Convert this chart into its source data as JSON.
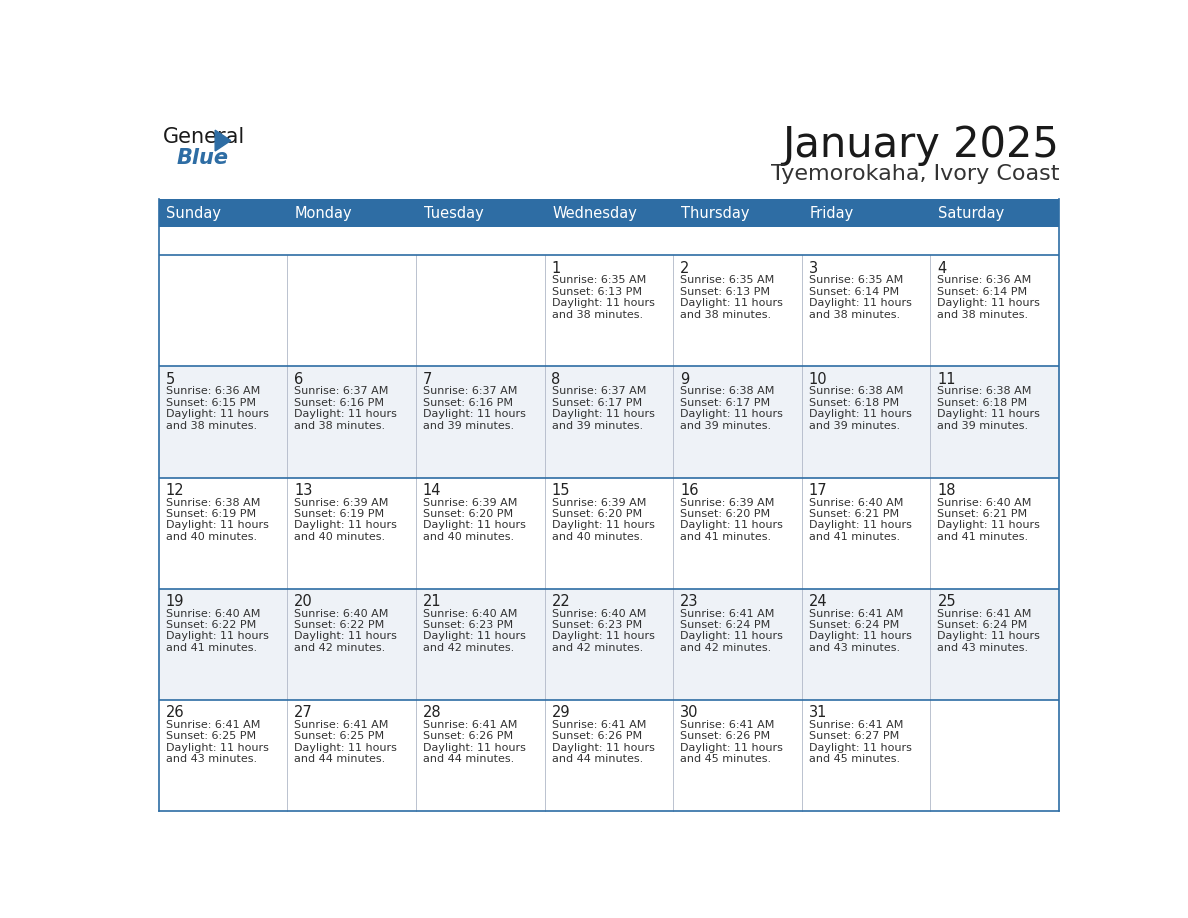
{
  "title": "January 2025",
  "subtitle": "Tyemorokaha, Ivory Coast",
  "header_bg_color": "#2e6da4",
  "header_text_color": "#ffffff",
  "row_bg_even": "#ffffff",
  "row_bg_odd": "#eef2f7",
  "title_color": "#1a1a1a",
  "subtitle_color": "#333333",
  "border_color": "#2e6da4",
  "cell_text_color": "#222222",
  "info_text_color": "#333333",
  "day_names": [
    "Sunday",
    "Monday",
    "Tuesday",
    "Wednesday",
    "Thursday",
    "Friday",
    "Saturday"
  ],
  "days": [
    {
      "week": 0,
      "dow": 0,
      "num": "",
      "sunrise": "",
      "sunset": "",
      "daylight_h": "",
      "daylight_m": ""
    },
    {
      "week": 0,
      "dow": 1,
      "num": "",
      "sunrise": "",
      "sunset": "",
      "daylight_h": "",
      "daylight_m": ""
    },
    {
      "week": 0,
      "dow": 2,
      "num": "",
      "sunrise": "",
      "sunset": "",
      "daylight_h": "",
      "daylight_m": ""
    },
    {
      "week": 0,
      "dow": 3,
      "num": "1",
      "sunrise": "6:35 AM",
      "sunset": "6:13 PM",
      "daylight_h": "11 hours",
      "daylight_m": "and 38 minutes."
    },
    {
      "week": 0,
      "dow": 4,
      "num": "2",
      "sunrise": "6:35 AM",
      "sunset": "6:13 PM",
      "daylight_h": "11 hours",
      "daylight_m": "and 38 minutes."
    },
    {
      "week": 0,
      "dow": 5,
      "num": "3",
      "sunrise": "6:35 AM",
      "sunset": "6:14 PM",
      "daylight_h": "11 hours",
      "daylight_m": "and 38 minutes."
    },
    {
      "week": 0,
      "dow": 6,
      "num": "4",
      "sunrise": "6:36 AM",
      "sunset": "6:14 PM",
      "daylight_h": "11 hours",
      "daylight_m": "and 38 minutes."
    },
    {
      "week": 1,
      "dow": 0,
      "num": "5",
      "sunrise": "6:36 AM",
      "sunset": "6:15 PM",
      "daylight_h": "11 hours",
      "daylight_m": "and 38 minutes."
    },
    {
      "week": 1,
      "dow": 1,
      "num": "6",
      "sunrise": "6:37 AM",
      "sunset": "6:16 PM",
      "daylight_h": "11 hours",
      "daylight_m": "and 38 minutes."
    },
    {
      "week": 1,
      "dow": 2,
      "num": "7",
      "sunrise": "6:37 AM",
      "sunset": "6:16 PM",
      "daylight_h": "11 hours",
      "daylight_m": "and 39 minutes."
    },
    {
      "week": 1,
      "dow": 3,
      "num": "8",
      "sunrise": "6:37 AM",
      "sunset": "6:17 PM",
      "daylight_h": "11 hours",
      "daylight_m": "and 39 minutes."
    },
    {
      "week": 1,
      "dow": 4,
      "num": "9",
      "sunrise": "6:38 AM",
      "sunset": "6:17 PM",
      "daylight_h": "11 hours",
      "daylight_m": "and 39 minutes."
    },
    {
      "week": 1,
      "dow": 5,
      "num": "10",
      "sunrise": "6:38 AM",
      "sunset": "6:18 PM",
      "daylight_h": "11 hours",
      "daylight_m": "and 39 minutes."
    },
    {
      "week": 1,
      "dow": 6,
      "num": "11",
      "sunrise": "6:38 AM",
      "sunset": "6:18 PM",
      "daylight_h": "11 hours",
      "daylight_m": "and 39 minutes."
    },
    {
      "week": 2,
      "dow": 0,
      "num": "12",
      "sunrise": "6:38 AM",
      "sunset": "6:19 PM",
      "daylight_h": "11 hours",
      "daylight_m": "and 40 minutes."
    },
    {
      "week": 2,
      "dow": 1,
      "num": "13",
      "sunrise": "6:39 AM",
      "sunset": "6:19 PM",
      "daylight_h": "11 hours",
      "daylight_m": "and 40 minutes."
    },
    {
      "week": 2,
      "dow": 2,
      "num": "14",
      "sunrise": "6:39 AM",
      "sunset": "6:20 PM",
      "daylight_h": "11 hours",
      "daylight_m": "and 40 minutes."
    },
    {
      "week": 2,
      "dow": 3,
      "num": "15",
      "sunrise": "6:39 AM",
      "sunset": "6:20 PM",
      "daylight_h": "11 hours",
      "daylight_m": "and 40 minutes."
    },
    {
      "week": 2,
      "dow": 4,
      "num": "16",
      "sunrise": "6:39 AM",
      "sunset": "6:20 PM",
      "daylight_h": "11 hours",
      "daylight_m": "and 41 minutes."
    },
    {
      "week": 2,
      "dow": 5,
      "num": "17",
      "sunrise": "6:40 AM",
      "sunset": "6:21 PM",
      "daylight_h": "11 hours",
      "daylight_m": "and 41 minutes."
    },
    {
      "week": 2,
      "dow": 6,
      "num": "18",
      "sunrise": "6:40 AM",
      "sunset": "6:21 PM",
      "daylight_h": "11 hours",
      "daylight_m": "and 41 minutes."
    },
    {
      "week": 3,
      "dow": 0,
      "num": "19",
      "sunrise": "6:40 AM",
      "sunset": "6:22 PM",
      "daylight_h": "11 hours",
      "daylight_m": "and 41 minutes."
    },
    {
      "week": 3,
      "dow": 1,
      "num": "20",
      "sunrise": "6:40 AM",
      "sunset": "6:22 PM",
      "daylight_h": "11 hours",
      "daylight_m": "and 42 minutes."
    },
    {
      "week": 3,
      "dow": 2,
      "num": "21",
      "sunrise": "6:40 AM",
      "sunset": "6:23 PM",
      "daylight_h": "11 hours",
      "daylight_m": "and 42 minutes."
    },
    {
      "week": 3,
      "dow": 3,
      "num": "22",
      "sunrise": "6:40 AM",
      "sunset": "6:23 PM",
      "daylight_h": "11 hours",
      "daylight_m": "and 42 minutes."
    },
    {
      "week": 3,
      "dow": 4,
      "num": "23",
      "sunrise": "6:41 AM",
      "sunset": "6:24 PM",
      "daylight_h": "11 hours",
      "daylight_m": "and 42 minutes."
    },
    {
      "week": 3,
      "dow": 5,
      "num": "24",
      "sunrise": "6:41 AM",
      "sunset": "6:24 PM",
      "daylight_h": "11 hours",
      "daylight_m": "and 43 minutes."
    },
    {
      "week": 3,
      "dow": 6,
      "num": "25",
      "sunrise": "6:41 AM",
      "sunset": "6:24 PM",
      "daylight_h": "11 hours",
      "daylight_m": "and 43 minutes."
    },
    {
      "week": 4,
      "dow": 0,
      "num": "26",
      "sunrise": "6:41 AM",
      "sunset": "6:25 PM",
      "daylight_h": "11 hours",
      "daylight_m": "and 43 minutes."
    },
    {
      "week": 4,
      "dow": 1,
      "num": "27",
      "sunrise": "6:41 AM",
      "sunset": "6:25 PM",
      "daylight_h": "11 hours",
      "daylight_m": "and 44 minutes."
    },
    {
      "week": 4,
      "dow": 2,
      "num": "28",
      "sunrise": "6:41 AM",
      "sunset": "6:26 PM",
      "daylight_h": "11 hours",
      "daylight_m": "and 44 minutes."
    },
    {
      "week": 4,
      "dow": 3,
      "num": "29",
      "sunrise": "6:41 AM",
      "sunset": "6:26 PM",
      "daylight_h": "11 hours",
      "daylight_m": "and 44 minutes."
    },
    {
      "week": 4,
      "dow": 4,
      "num": "30",
      "sunrise": "6:41 AM",
      "sunset": "6:26 PM",
      "daylight_h": "11 hours",
      "daylight_m": "and 45 minutes."
    },
    {
      "week": 4,
      "dow": 5,
      "num": "31",
      "sunrise": "6:41 AM",
      "sunset": "6:27 PM",
      "daylight_h": "11 hours",
      "daylight_m": "and 45 minutes."
    },
    {
      "week": 4,
      "dow": 6,
      "num": "",
      "sunrise": "",
      "sunset": "",
      "daylight_h": "",
      "daylight_m": ""
    }
  ],
  "num_weeks": 5
}
